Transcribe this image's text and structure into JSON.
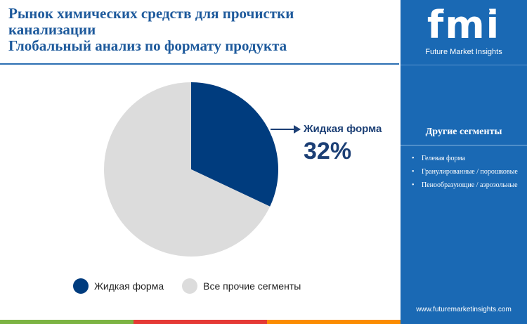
{
  "title": {
    "line1": "Рынок химических средств для прочистки",
    "line2": "канализации",
    "line3": "Глобальный анализ по формату продукта"
  },
  "chart_data": {
    "type": "pie",
    "slices": [
      {
        "name": "Жидкая форма",
        "value": 32,
        "color": "#003c7e"
      },
      {
        "name": "Все прочие сегменты",
        "value": 68,
        "color": "#dcdcdc"
      }
    ]
  },
  "callout": {
    "label": "Жидкая форма",
    "value": "32%"
  },
  "legend": [
    {
      "label": "Жидкая форма",
      "color": "#003c7e"
    },
    {
      "label": "Все прочие сегменты",
      "color": "#dcdcdc"
    }
  ],
  "sidebar": {
    "logo_text": "fmi",
    "logo_subtitle": "Future Market Insights",
    "header": "Другие сегменты",
    "items": [
      "Гелевая форма",
      "Гранулированные / порошковые",
      "Пенообразующие / аэрозольные"
    ],
    "url": "www.futuremarketinsights.com"
  },
  "colors": {
    "title": "#1e5a9c",
    "accent": "#1a69b4",
    "bottom_bar": [
      "#7cb342",
      "#e53935",
      "#fb8c00"
    ]
  }
}
